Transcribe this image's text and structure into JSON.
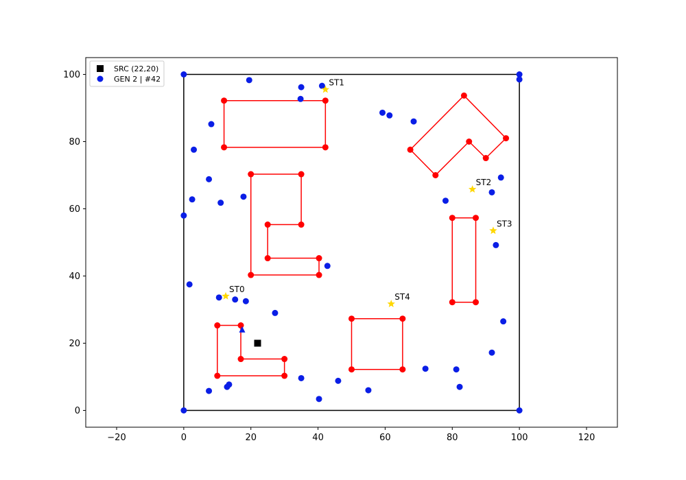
{
  "chart_data": {
    "type": "scatter",
    "xlim": [
      -29.2,
      129.2
    ],
    "ylim": [
      -5,
      105
    ],
    "xticks": [
      -20,
      0,
      20,
      40,
      60,
      80,
      100,
      120
    ],
    "yticks": [
      0,
      20,
      40,
      60,
      80,
      100
    ],
    "grid": false,
    "legend_position": "top-left",
    "legend": [
      {
        "label": "SRC (22,20)",
        "marker": "square",
        "color": "#000000"
      },
      {
        "label": "GEN 2 | #42",
        "marker": "circle",
        "color": "#0a1ee6"
      }
    ],
    "boundary": {
      "color": "#000000",
      "points": [
        [
          0,
          0
        ],
        [
          100,
          0
        ],
        [
          100,
          100
        ],
        [
          0,
          100
        ],
        [
          0,
          0
        ]
      ]
    },
    "source": {
      "x": 22,
      "y": 20,
      "color": "#000000"
    },
    "obstacles": {
      "color": "#ff0000",
      "polygons": [
        [
          [
            12,
            78.3
          ],
          [
            42.2,
            78.3
          ],
          [
            42.2,
            92.2
          ],
          [
            12,
            92.2
          ],
          [
            12,
            78.3
          ]
        ],
        [
          [
            20,
            40.3
          ],
          [
            40.3,
            40.3
          ],
          [
            40.3,
            45.3
          ],
          [
            25,
            45.3
          ],
          [
            25,
            55.3
          ],
          [
            35,
            55.3
          ],
          [
            35,
            70.3
          ],
          [
            20,
            70.3
          ],
          [
            20,
            40.3
          ]
        ],
        [
          [
            10,
            10.3
          ],
          [
            30,
            10.3
          ],
          [
            30,
            15.3
          ],
          [
            17,
            15.3
          ],
          [
            17,
            25.3
          ],
          [
            10,
            25.3
          ],
          [
            10,
            10.3
          ]
        ],
        [
          [
            50,
            12.2
          ],
          [
            65.2,
            12.2
          ],
          [
            65.2,
            27.3
          ],
          [
            50,
            27.3
          ],
          [
            50,
            12.2
          ]
        ],
        [
          [
            80,
            32.2
          ],
          [
            87,
            32.2
          ],
          [
            87,
            57.3
          ],
          [
            80,
            57.3
          ],
          [
            80,
            32.2
          ]
        ],
        [
          [
            67.5,
            77.6
          ],
          [
            75,
            70
          ],
          [
            85,
            80
          ],
          [
            90,
            75.1
          ],
          [
            96,
            81
          ],
          [
            83.5,
            93.7
          ],
          [
            67.5,
            77.6
          ]
        ]
      ]
    },
    "stations": {
      "color": "#ffd700",
      "points": [
        {
          "label": "ST0",
          "x": 12.5,
          "y": 34
        },
        {
          "label": "ST1",
          "x": 42.2,
          "y": 95.5
        },
        {
          "label": "ST2",
          "x": 86,
          "y": 65.8
        },
        {
          "label": "ST3",
          "x": 92.2,
          "y": 53.5
        },
        {
          "label": "ST4",
          "x": 61.8,
          "y": 31.7
        }
      ]
    },
    "series": [
      {
        "name": "GEN 2 | #42",
        "color": "#0a1ee6",
        "points": [
          [
            0,
            100
          ],
          [
            19.5,
            98.3
          ],
          [
            35,
            96.2
          ],
          [
            41.2,
            96.6
          ],
          [
            34.8,
            92.7
          ],
          [
            100,
            100
          ],
          [
            100,
            98.5
          ],
          [
            8.2,
            85.2
          ],
          [
            3,
            77.6
          ],
          [
            59.2,
            88.6
          ],
          [
            61.3,
            87.8
          ],
          [
            68.5,
            86
          ],
          [
            7.5,
            68.8
          ],
          [
            2.5,
            62.8
          ],
          [
            11,
            61.8
          ],
          [
            17.8,
            63.6
          ],
          [
            0,
            58
          ],
          [
            94.5,
            69.3
          ],
          [
            91.8,
            64.9
          ],
          [
            78,
            62.4
          ],
          [
            93,
            49.2
          ],
          [
            42.8,
            43
          ],
          [
            1.7,
            37.5
          ],
          [
            10.5,
            33.6
          ],
          [
            15.3,
            33
          ],
          [
            18.5,
            32.5
          ],
          [
            27.2,
            29
          ],
          [
            95.2,
            26.5
          ],
          [
            91.8,
            17.2
          ],
          [
            72,
            12.4
          ],
          [
            81.2,
            12.2
          ],
          [
            82.2,
            7
          ],
          [
            7.5,
            5.8
          ],
          [
            12.9,
            7
          ],
          [
            13.5,
            7.7
          ],
          [
            35,
            9.6
          ],
          [
            46,
            8.8
          ],
          [
            55,
            6
          ],
          [
            40.3,
            3.4
          ],
          [
            0,
            0
          ],
          [
            100,
            0
          ]
        ]
      }
    ],
    "annotations": [
      {
        "marker": "triangle",
        "x": 17.4,
        "y": 24,
        "color": "#0a1ee6"
      }
    ]
  }
}
